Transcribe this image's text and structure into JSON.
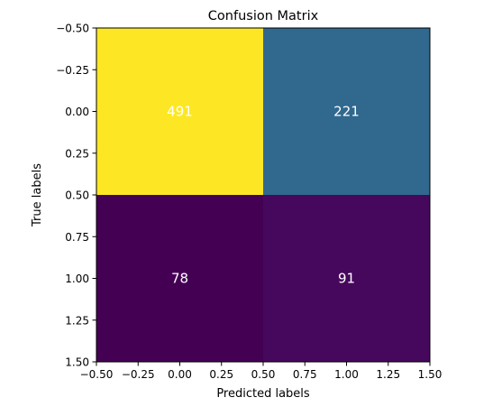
{
  "chart_data": {
    "type": "heatmap",
    "title": "Confusion Matrix",
    "xlabel": "Predicted labels",
    "ylabel": "True labels",
    "xlim": [
      -0.5,
      1.5
    ],
    "ylim": [
      1.5,
      -0.5
    ],
    "x_ticks": [
      -0.5,
      -0.25,
      0.0,
      0.25,
      0.5,
      0.75,
      1.0,
      1.25,
      1.5
    ],
    "x_tick_labels": [
      "−0.50",
      "−0.25",
      "0.00",
      "0.25",
      "0.50",
      "0.75",
      "1.00",
      "1.25",
      "1.50"
    ],
    "y_ticks": [
      -0.5,
      -0.25,
      0.0,
      0.25,
      0.5,
      0.75,
      1.0,
      1.25,
      1.5
    ],
    "y_tick_labels": [
      "−0.50",
      "−0.25",
      "0.00",
      "0.25",
      "0.50",
      "0.75",
      "1.00",
      "1.25",
      "1.50"
    ],
    "matrix": [
      [
        491,
        221
      ],
      [
        78,
        91
      ]
    ],
    "cell_labels": [
      [
        "491",
        "221"
      ],
      [
        "78",
        "91"
      ]
    ],
    "colormap": "viridis",
    "cell_colors": [
      [
        "#fde725",
        "#31688e"
      ],
      [
        "#440154",
        "#46085c"
      ]
    ],
    "annotation_color": "#ffffff",
    "grid": false
  }
}
